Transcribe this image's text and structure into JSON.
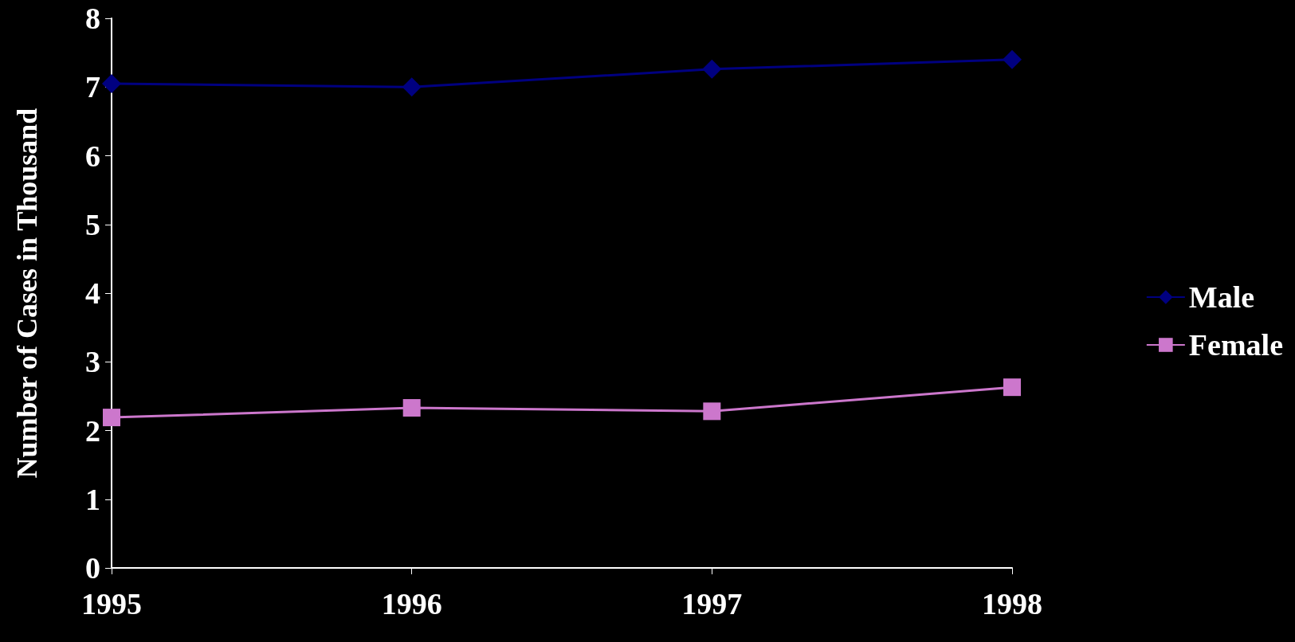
{
  "chart_data": {
    "type": "line",
    "ylabel": "Number of Cases in Thousand",
    "categories": [
      "1995",
      "1996",
      "1997",
      "1998"
    ],
    "series": [
      {
        "name": "Male",
        "color": "#000080",
        "marker": "diamond",
        "values": [
          7.05,
          7.0,
          7.26,
          7.4
        ]
      },
      {
        "name": "Female",
        "color": "#cc77cc",
        "marker": "square",
        "values": [
          2.19,
          2.33,
          2.28,
          2.63
        ]
      }
    ],
    "ylim": [
      0,
      8
    ],
    "yticks": [
      0,
      1,
      2,
      3,
      4,
      5,
      6,
      7,
      8
    ],
    "grid": false,
    "legend": "right"
  }
}
